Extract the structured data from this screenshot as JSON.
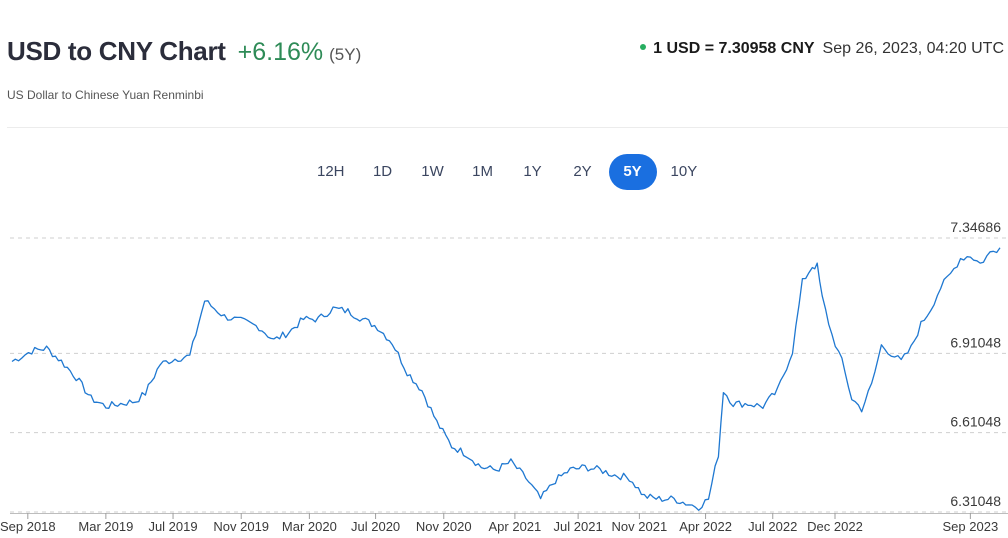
{
  "header": {
    "title": "USD to CNY Chart",
    "change": "+6.16%",
    "period": "(5Y)",
    "subtitle": "US Dollar to Chinese Yuan Renminbi",
    "rate": "1 USD = 7.30958 CNY",
    "timestamp": "Sep 26, 2023, 04:20 UTC",
    "status_color": "#27ae60"
  },
  "tabs": [
    {
      "label": "12H",
      "active": false
    },
    {
      "label": "1D",
      "active": false
    },
    {
      "label": "1W",
      "active": false
    },
    {
      "label": "1M",
      "active": false
    },
    {
      "label": "1Y",
      "active": false
    },
    {
      "label": "2Y",
      "active": false
    },
    {
      "label": "5Y",
      "active": true
    },
    {
      "label": "10Y",
      "active": false
    }
  ],
  "chart_data": {
    "type": "line",
    "line_color": "#1f78d1",
    "ylim": [
      6.31048,
      7.34686
    ],
    "y_ticks": [
      "7.34686",
      "6.91048",
      "6.61048",
      "6.31048"
    ],
    "y_tick_values": [
      7.34686,
      6.91048,
      6.61048,
      6.31048
    ],
    "x_ticks": [
      "Sep 2018",
      "Mar 2019",
      "Jul 2019",
      "Nov 2019",
      "Mar 2020",
      "Jul 2020",
      "Nov 2020",
      "Apr 2021",
      "Jul 2021",
      "Nov 2021",
      "Apr 2022",
      "Jul 2022",
      "Dec 2022",
      "Sep 2023"
    ],
    "x_tick_t": [
      0.016,
      0.095,
      0.163,
      0.232,
      0.301,
      0.368,
      0.437,
      0.509,
      0.573,
      0.635,
      0.702,
      0.77,
      0.833,
      0.97
    ],
    "grid": "horizontal dashed",
    "series": [
      {
        "t": [
          0.0,
          0.02,
          0.035,
          0.05,
          0.065,
          0.08,
          0.095,
          0.11,
          0.125,
          0.135,
          0.15,
          0.165,
          0.18,
          0.195,
          0.215,
          0.235,
          0.25,
          0.265,
          0.28,
          0.295,
          0.31,
          0.325,
          0.34,
          0.355,
          0.37,
          0.385,
          0.4,
          0.415,
          0.43,
          0.445,
          0.46,
          0.475,
          0.49,
          0.505,
          0.52,
          0.535,
          0.55,
          0.565,
          0.58,
          0.595,
          0.61,
          0.625,
          0.64,
          0.655,
          0.67,
          0.685,
          0.695,
          0.705,
          0.715,
          0.72,
          0.73,
          0.745,
          0.76,
          0.775,
          0.79,
          0.8,
          0.81,
          0.815,
          0.82,
          0.83,
          0.84,
          0.85,
          0.86,
          0.87,
          0.88,
          0.89,
          0.9,
          0.91,
          0.92,
          0.93,
          0.94,
          0.95,
          0.96,
          0.97,
          0.98,
          0.99,
          1.0
        ],
        "values": [
          6.88,
          6.92,
          6.93,
          6.88,
          6.82,
          6.74,
          6.71,
          6.72,
          6.73,
          6.76,
          6.87,
          6.89,
          6.9,
          7.11,
          7.05,
          7.03,
          7.01,
          6.96,
          6.99,
          7.04,
          7.04,
          7.08,
          7.07,
          7.04,
          7.01,
          6.95,
          6.84,
          6.77,
          6.65,
          6.56,
          6.53,
          6.48,
          6.47,
          6.5,
          6.44,
          6.36,
          6.43,
          6.47,
          6.48,
          6.47,
          6.45,
          6.44,
          6.37,
          6.36,
          6.36,
          6.34,
          6.33,
          6.36,
          6.53,
          6.77,
          6.72,
          6.72,
          6.71,
          6.77,
          6.92,
          7.18,
          7.24,
          7.24,
          7.12,
          6.98,
          6.88,
          6.74,
          6.7,
          6.79,
          6.94,
          6.91,
          6.88,
          6.93,
          7.02,
          7.08,
          7.16,
          7.21,
          7.27,
          7.28,
          7.25,
          7.29,
          7.31
        ]
      }
    ]
  }
}
